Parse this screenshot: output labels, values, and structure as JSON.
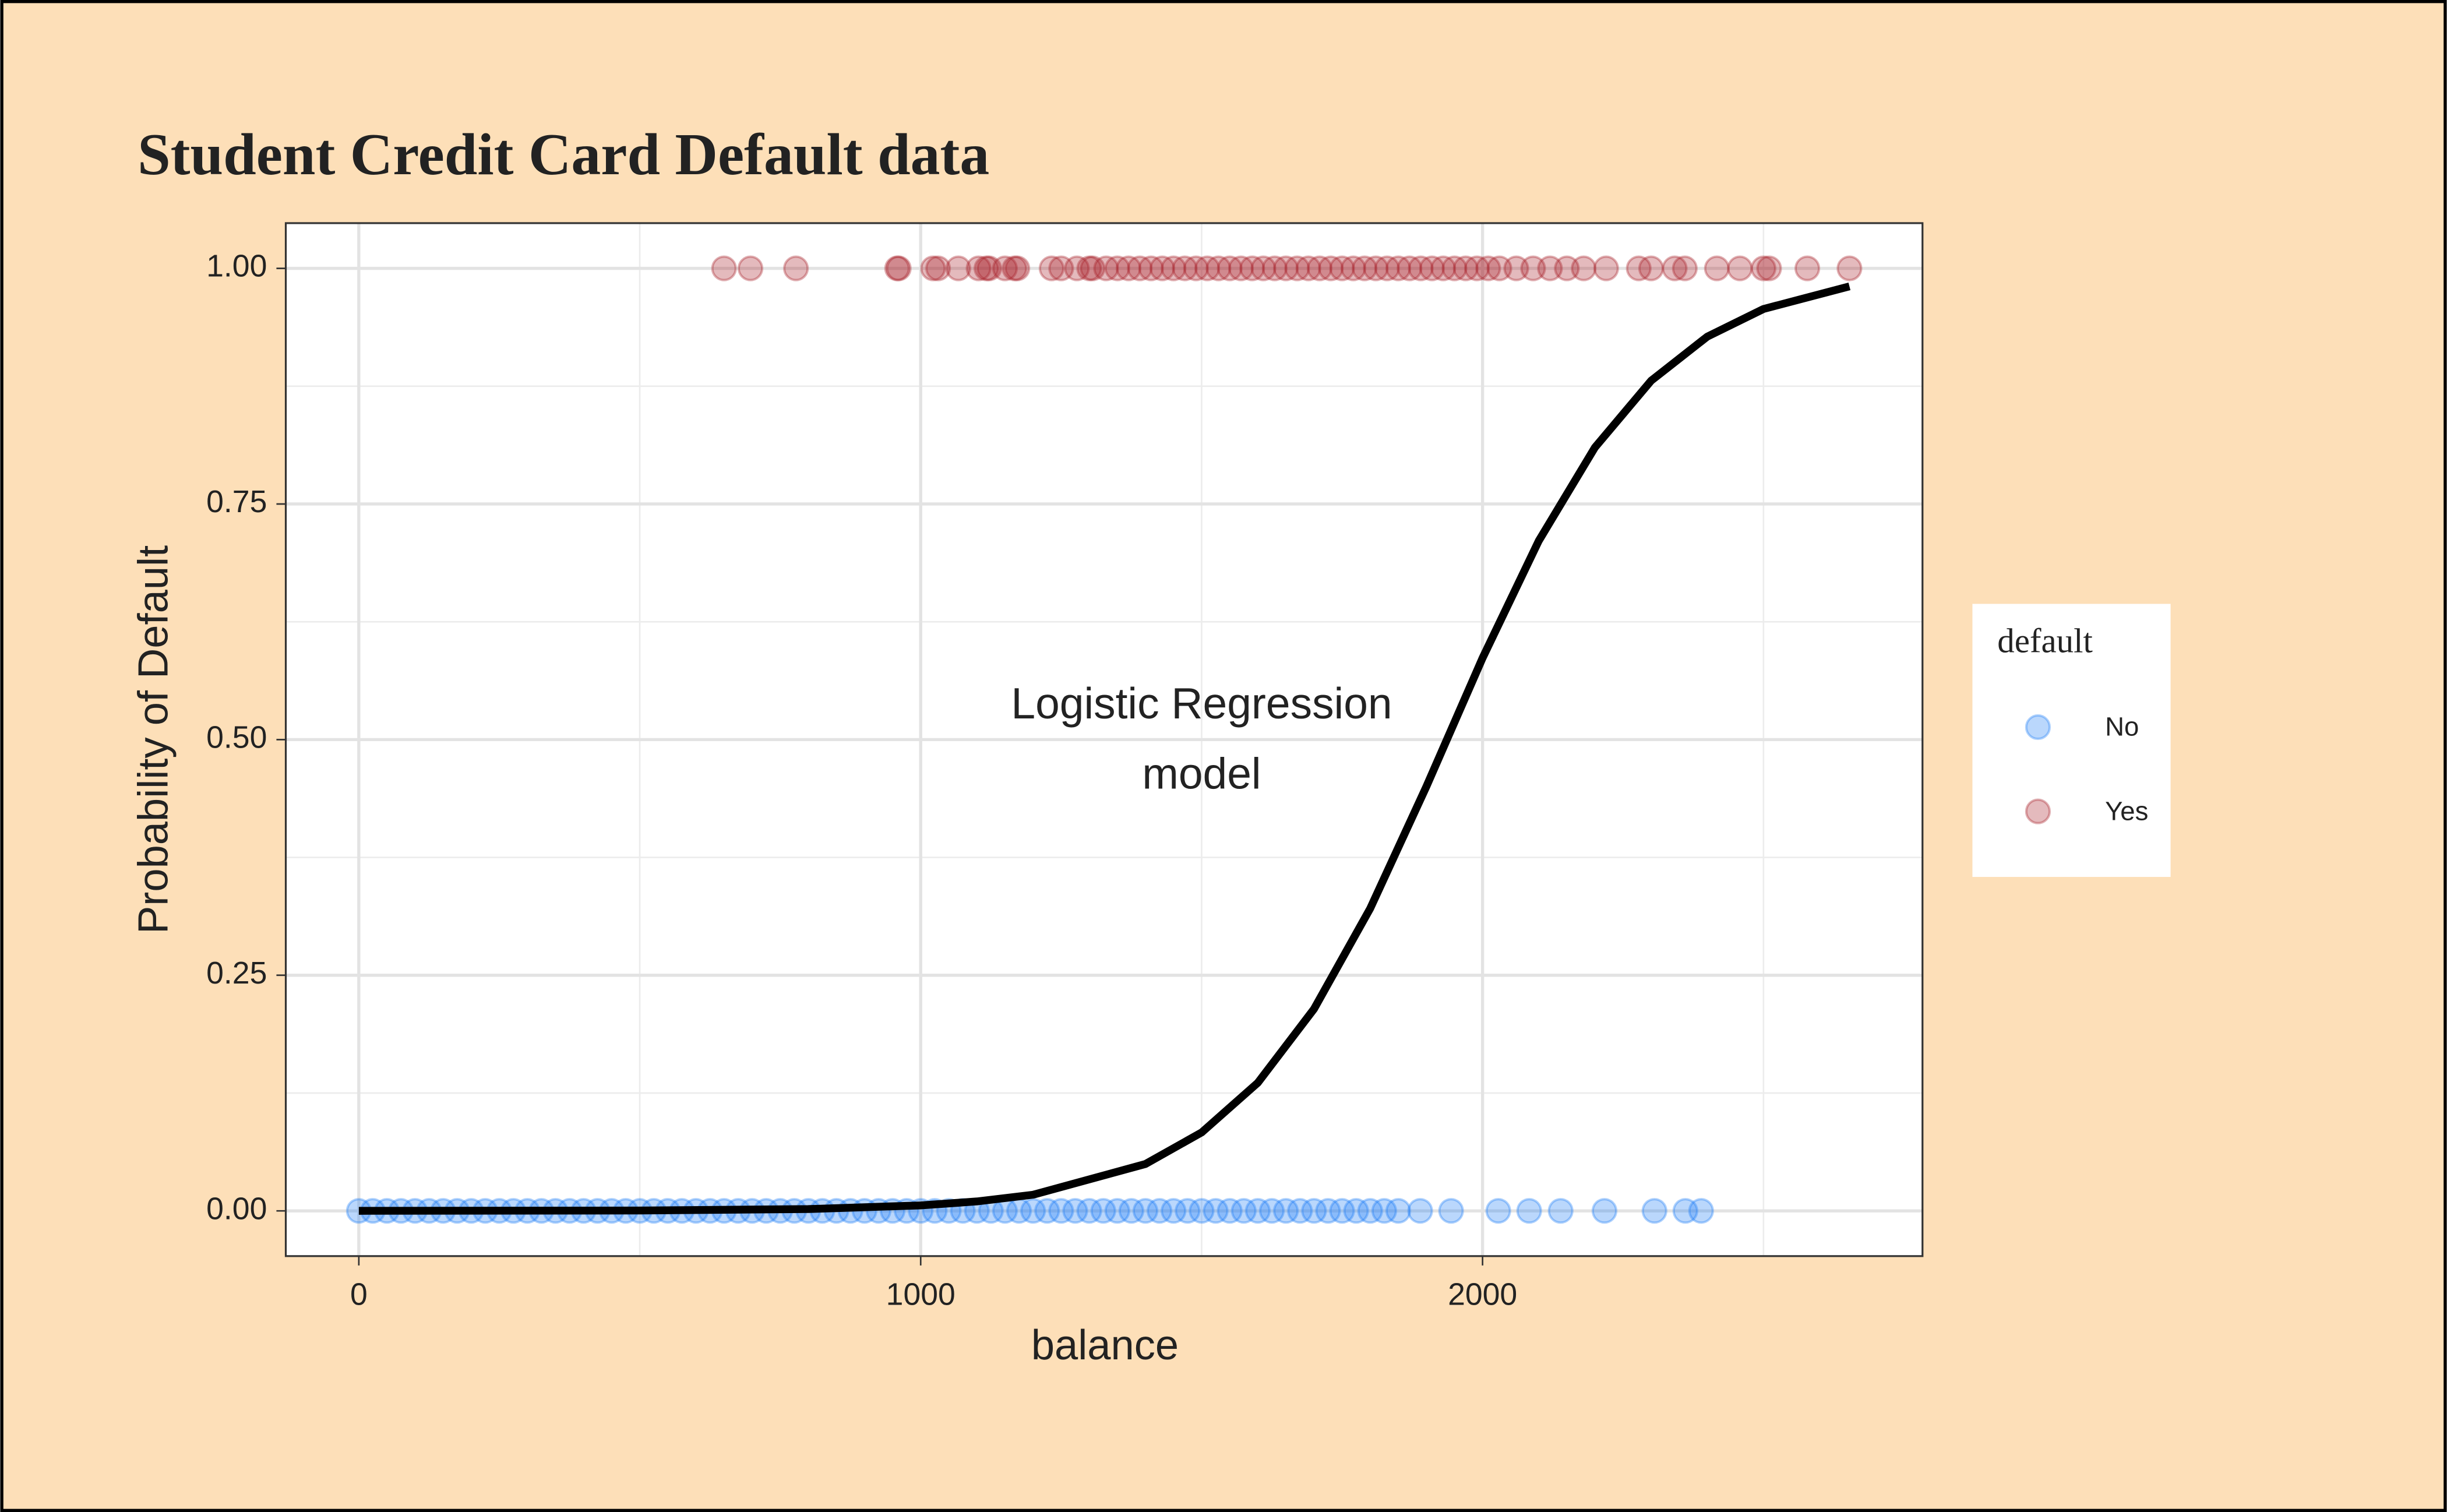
{
  "chart_data": {
    "type": "scatter",
    "title": "Student Credit Card Default data",
    "x_label": "balance",
    "y_label": "Probability of Default",
    "legend_title": "default",
    "legend": "right",
    "annotation": [
      "Logistic Regression",
      "model"
    ],
    "xlim": [
      -130,
      2783
    ],
    "ylim": [
      -0.048,
      1.048
    ],
    "xticks": [
      0,
      1000,
      2000
    ],
    "xminor": [
      500,
      1500,
      2500
    ],
    "yticks": [
      {
        "value": 0,
        "label": "0.00"
      },
      {
        "value": 0.25,
        "label": "0.25"
      },
      {
        "value": 0.5,
        "label": "0.50"
      },
      {
        "value": 0.75,
        "label": "0.75"
      },
      {
        "value": 1,
        "label": "1.00"
      }
    ],
    "yminor": [
      0.125,
      0.375,
      0.625,
      0.875
    ],
    "grid": true,
    "series": [
      {
        "name": "No",
        "color": "#1a7cf5",
        "x": [
          0,
          25,
          50,
          75,
          100,
          125,
          150,
          175,
          200,
          225,
          250,
          275,
          300,
          325,
          350,
          375,
          400,
          425,
          450,
          475,
          500,
          525,
          550,
          575,
          600,
          625,
          650,
          675,
          700,
          725,
          750,
          775,
          800,
          825,
          850,
          875,
          900,
          925,
          950,
          975,
          1000,
          1025,
          1050,
          1075,
          1100,
          1125,
          1150,
          1175,
          1200,
          1225,
          1250,
          1275,
          1300,
          1325,
          1350,
          1375,
          1400,
          1425,
          1450,
          1475,
          1500,
          1525,
          1550,
          1575,
          1600,
          1625,
          1650,
          1675,
          1700,
          1725,
          1750,
          1775,
          1800,
          1825,
          1850,
          1889,
          1944,
          2028,
          2083,
          2139,
          2217,
          2306,
          2361,
          2389
        ],
        "values": [
          0,
          0,
          0,
          0,
          0,
          0,
          0,
          0,
          0,
          0,
          0,
          0,
          0,
          0,
          0,
          0,
          0,
          0,
          0,
          0,
          0,
          0,
          0,
          0,
          0,
          0,
          0,
          0,
          0,
          0,
          0,
          0,
          0,
          0,
          0,
          0,
          0,
          0,
          0,
          0,
          0,
          0,
          0,
          0,
          0,
          0,
          0,
          0,
          0,
          0,
          0,
          0,
          0,
          0,
          0,
          0,
          0,
          0,
          0,
          0,
          0,
          0,
          0,
          0,
          0,
          0,
          0,
          0,
          0,
          0,
          0,
          0,
          0,
          0,
          0,
          0,
          0,
          0,
          0,
          0,
          0,
          0,
          0,
          0
        ]
      },
      {
        "name": "Yes",
        "color": "#a51c24",
        "x": [
          650,
          697,
          778,
          958,
          961,
          1022,
          1031,
          1067,
          1103,
          1117,
          1122,
          1150,
          1167,
          1172,
          1233,
          1250,
          1278,
          1300,
          1306,
          1330,
          1350,
          1370,
          1390,
          1410,
          1430,
          1450,
          1470,
          1490,
          1510,
          1530,
          1550,
          1570,
          1590,
          1610,
          1630,
          1650,
          1670,
          1690,
          1710,
          1730,
          1750,
          1770,
          1790,
          1810,
          1830,
          1850,
          1870,
          1890,
          1910,
          1930,
          1950,
          1970,
          1990,
          2010,
          2030,
          2060,
          2090,
          2120,
          2150,
          2180,
          2220,
          2278,
          2300,
          2342,
          2360,
          2417,
          2458,
          2500,
          2510,
          2578,
          2653
        ],
        "values": [
          1,
          1,
          1,
          1,
          1,
          1,
          1,
          1,
          1,
          1,
          1,
          1,
          1,
          1,
          1,
          1,
          1,
          1,
          1,
          1,
          1,
          1,
          1,
          1,
          1,
          1,
          1,
          1,
          1,
          1,
          1,
          1,
          1,
          1,
          1,
          1,
          1,
          1,
          1,
          1,
          1,
          1,
          1,
          1,
          1,
          1,
          1,
          1,
          1,
          1,
          1,
          1,
          1,
          1,
          1,
          1,
          1,
          1,
          1,
          1,
          1,
          1,
          1,
          1,
          1,
          1,
          1,
          1,
          1,
          1,
          1
        ]
      }
    ],
    "curve": {
      "color": "#000000",
      "x": [
        0,
        500,
        800,
        1000,
        1100,
        1200,
        1400,
        1500,
        1600,
        1700,
        1800,
        1900,
        2000,
        2100,
        2200,
        2300,
        2400,
        2500,
        2653
      ],
      "y": [
        2.37e-05,
        0.00037,
        0.0019,
        0.0058,
        0.01,
        0.0171,
        0.0497,
        0.0832,
        0.1359,
        0.2142,
        0.3208,
        0.4502,
        0.5866,
        0.7109,
        0.81,
        0.8808,
        0.9276,
        0.9569,
        0.9809
      ]
    }
  }
}
